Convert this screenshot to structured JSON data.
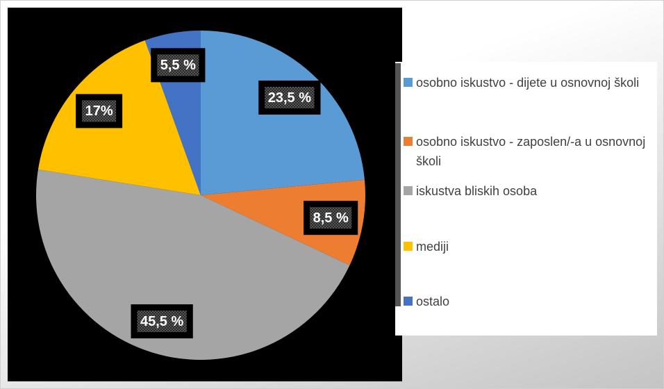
{
  "chart_data": {
    "type": "pie",
    "categories": [
      "osobno iskustvo - dijete u osnovnoj školi",
      "osobno iskustvo - zaposlen/-a u osnovnoj školi",
      "iskustva bliskih osoba",
      "mediji",
      "ostalo"
    ],
    "values": [
      23.5,
      8.5,
      45.5,
      17,
      5.5
    ],
    "value_labels": [
      "23,5 %",
      "8,5 %",
      "45,5 %",
      "17%",
      "5,5 %"
    ],
    "colors": [
      "#5b9bd5",
      "#ed7d31",
      "#a5a5a5",
      "#ffc000",
      "#4472c4"
    ],
    "legend": "right"
  }
}
